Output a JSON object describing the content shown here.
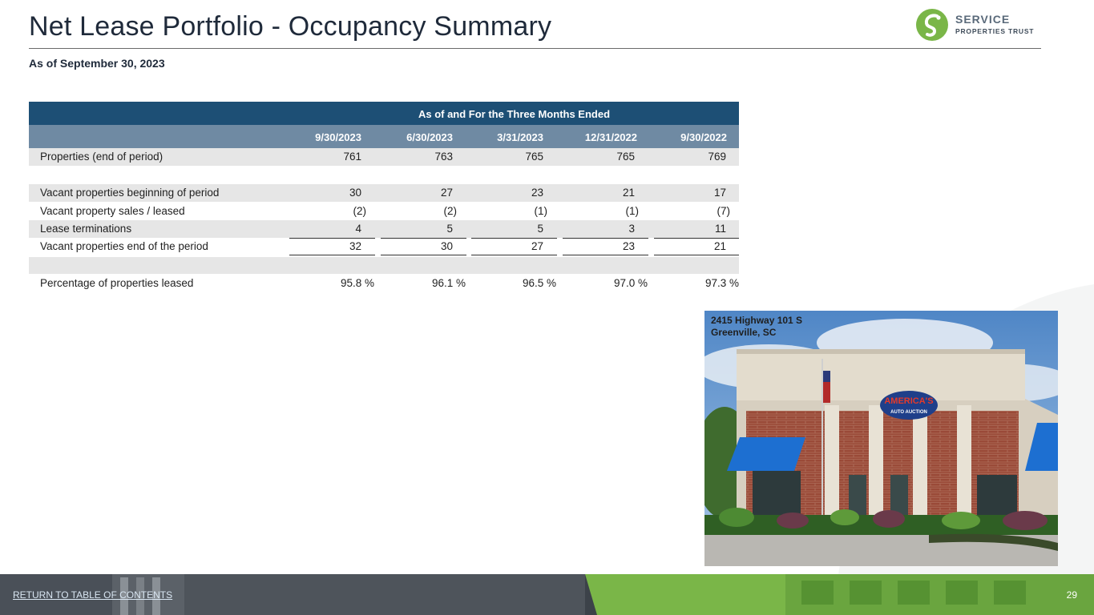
{
  "header": {
    "title": "Net Lease Portfolio - Occupancy Summary",
    "subtitle": "As of September 30, 2023",
    "logo_line1": "SERVICE",
    "logo_line2": "PROPERTIES TRUST"
  },
  "table": {
    "group_header": "As of and For the Three Months Ended",
    "columns": [
      "9/30/2023",
      "6/30/2023",
      "3/31/2023",
      "12/31/2022",
      "9/30/2022"
    ],
    "rows": [
      {
        "label": "Properties (end of period)",
        "values": [
          "761",
          "763",
          "765",
          "765",
          "769"
        ]
      },
      {
        "label": "Vacant properties beginning of period",
        "values": [
          "30",
          "27",
          "23",
          "21",
          "17"
        ]
      },
      {
        "label": "Vacant property sales / leased",
        "values": [
          "(2)",
          "(2)",
          "(1)",
          "(1)",
          "(7)"
        ]
      },
      {
        "label": "Lease terminations",
        "values": [
          "4",
          "5",
          "5",
          "3",
          "11"
        ]
      },
      {
        "label": "Vacant properties end of the period",
        "values": [
          "32",
          "30",
          "27",
          "23",
          "21"
        ]
      },
      {
        "label": "Percentage of properties leased",
        "values": [
          "95.8 %",
          "96.1 %",
          "96.5 %",
          "97.0 %",
          "97.3 %"
        ]
      }
    ]
  },
  "photo": {
    "caption_line1": "2415 Highway 101 S",
    "caption_line2": "Greenville, SC",
    "sign_text": "AMERICA'S",
    "sign_text2": "AUTO AUCTION"
  },
  "footer": {
    "link": "RETURN TO TABLE OF CONTENTS",
    "page": "29"
  },
  "colors": {
    "brand_green": "#7ab648",
    "header_dark": "#1d4f75",
    "header_light": "#6f8aa3",
    "row_shade": "#e6e6e6"
  }
}
